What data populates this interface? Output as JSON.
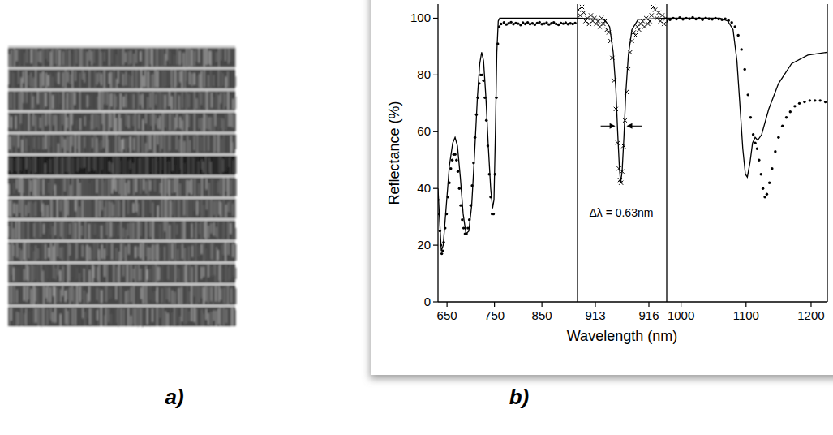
{
  "figure": {
    "panel_labels": [
      "a)",
      "b)"
    ]
  },
  "chart_data": [
    {
      "type": "line",
      "y_label": "Reflectance (%)",
      "xlim": [
        631,
        925
      ],
      "xticks": [
        650,
        750,
        850
      ],
      "ylim": [
        0,
        105
      ],
      "yticks": [
        0,
        20,
        40,
        60,
        80,
        100
      ],
      "series": [
        {
          "type": "line",
          "color": "#000000",
          "line_style": "solid",
          "x": [
            631,
            634,
            638,
            642,
            648,
            655,
            662,
            667,
            672,
            678,
            684,
            690,
            696,
            702,
            708,
            714,
            719,
            723,
            727,
            732,
            737,
            742,
            746,
            749,
            752,
            755,
            758,
            761,
            925
          ],
          "values": [
            40,
            30,
            18,
            20,
            33,
            48,
            56,
            58,
            55,
            44,
            31,
            24,
            25,
            34,
            52,
            72,
            84,
            88,
            85,
            72,
            55,
            40,
            33,
            36,
            60,
            88,
            99,
            100,
            100
          ]
        },
        {
          "type": "scatter",
          "color": "#000000",
          "marker": "dot",
          "x": [
            631,
            633,
            635,
            637,
            639,
            641,
            643,
            646,
            649,
            652,
            655,
            658,
            661,
            664,
            667,
            670,
            673,
            676,
            679,
            682,
            685,
            688,
            691,
            694,
            697,
            700,
            703,
            706,
            709,
            712,
            715,
            718,
            721,
            724,
            727,
            730,
            733,
            736,
            739,
            742,
            745,
            748,
            751,
            754,
            757,
            760,
            764,
            770,
            775,
            780,
            785,
            790,
            795,
            800,
            805,
            810,
            815,
            820,
            825,
            830,
            835,
            840,
            845,
            850,
            855,
            860,
            865,
            870,
            875,
            880,
            885,
            890,
            895,
            900,
            905,
            910,
            915,
            920
          ],
          "values": [
            36,
            31,
            25,
            20,
            17,
            18,
            21,
            26,
            31,
            37,
            42,
            47,
            50,
            52,
            52,
            50,
            46,
            40,
            34,
            29,
            26,
            24,
            24,
            26,
            29,
            34,
            41,
            49,
            58,
            66,
            72,
            77,
            80,
            80,
            78,
            72,
            64,
            55,
            45,
            37,
            31,
            31,
            45,
            72,
            91,
            97,
            98,
            98.5,
            97.8,
            98.2,
            98.6,
            97.9,
            98.3,
            98.1,
            97.6,
            98.4,
            98,
            98.5,
            97.9,
            98.2,
            97.7,
            98.3,
            98.6,
            97.9,
            98.1,
            98.4,
            97.8,
            98.2,
            98.5,
            98,
            97.7,
            98.3,
            98.1,
            98.4,
            97.9,
            98.2,
            98,
            98.3
          ]
        }
      ]
    },
    {
      "type": "line",
      "x_label": "Wavelength (nm)",
      "tick_labels": "x",
      "xlim": [
        912,
        917
      ],
      "xticks": [
        913,
        916
      ],
      "ylim": [
        0,
        105
      ],
      "series": [
        {
          "type": "line",
          "color": "#000000",
          "line_style": "solid",
          "x": [
            912,
            913.5,
            913.8,
            914.0,
            914.15,
            914.25,
            914.35,
            914.42,
            914.5,
            914.6,
            914.7,
            914.85,
            915.05,
            915.4,
            917
          ],
          "values": [
            100,
            99.6,
            97,
            88,
            75,
            60,
            47,
            42,
            46,
            58,
            73,
            87,
            96,
            99.6,
            100
          ]
        },
        {
          "type": "scatter",
          "color": "#000000",
          "marker": "cross",
          "x": [
            912.05,
            912.15,
            912.25,
            912.35,
            912.45,
            912.55,
            912.65,
            912.75,
            912.85,
            912.95,
            913.05,
            913.15,
            913.25,
            913.35,
            913.45,
            913.55,
            913.65,
            913.75,
            913.85,
            913.95,
            914.05,
            914.15,
            914.25,
            914.32,
            914.38,
            914.44,
            914.5,
            914.58,
            914.66,
            914.75,
            914.85,
            914.95,
            915.05,
            915.15,
            915.25,
            915.35,
            915.45,
            915.55,
            915.65,
            915.75,
            915.85,
            915.95,
            916.05,
            916.15,
            916.25,
            916.35,
            916.45,
            916.55,
            916.65,
            916.75,
            916.85,
            916.95
          ],
          "values": [
            103,
            101,
            104,
            102,
            99,
            100,
            98,
            101,
            99,
            100,
            98,
            99,
            97,
            100,
            98,
            99,
            96,
            95,
            92,
            86,
            78,
            68,
            56,
            47,
            43,
            42,
            46,
            55,
            64,
            74,
            82,
            88,
            92,
            95,
            94,
            97,
            96,
            98,
            99,
            97,
            100,
            98,
            99,
            101,
            104,
            103,
            100,
            102,
            99,
            101,
            98,
            100
          ]
        }
      ],
      "annotations": [
        {
          "text": "Δλ = 0.63nm",
          "x": 914.45,
          "y": 30,
          "arrows": {
            "y": 62,
            "from": [
              913.3,
              915.6
            ],
            "to": [
              914.12,
              914.75
            ]
          }
        }
      ]
    },
    {
      "type": "line",
      "tick_labels": "x",
      "xlim": [
        978,
        1225
      ],
      "xticks": [
        1000,
        1100,
        1200
      ],
      "ylim": [
        0,
        105
      ],
      "series": [
        {
          "type": "line",
          "color": "#000000",
          "line_style": "solid",
          "x": [
            978,
            1060,
            1072,
            1080,
            1086,
            1091,
            1095,
            1099,
            1102,
            1106,
            1110,
            1114,
            1118,
            1124,
            1135,
            1150,
            1170,
            1195,
            1225
          ],
          "values": [
            100,
            100,
            99,
            96,
            85,
            68,
            54,
            45,
            44,
            49,
            56,
            58,
            57,
            59,
            68,
            77,
            84,
            87,
            88
          ]
        },
        {
          "type": "scatter",
          "color": "#000000",
          "marker": "dot",
          "x": [
            978,
            983,
            988,
            993,
            998,
            1003,
            1008,
            1013,
            1018,
            1023,
            1028,
            1033,
            1038,
            1043,
            1048,
            1053,
            1058,
            1063,
            1068,
            1073,
            1078,
            1083,
            1088,
            1093,
            1098,
            1103,
            1107,
            1111,
            1114,
            1117,
            1120,
            1123,
            1126,
            1129,
            1132,
            1136,
            1140,
            1145,
            1150,
            1156,
            1162,
            1168,
            1175,
            1182,
            1190,
            1198,
            1206,
            1214,
            1222
          ],
          "values": [
            99,
            99.5,
            100,
            99.7,
            100.2,
            99.6,
            100,
            99.8,
            100.3,
            99.7,
            100,
            99.5,
            100.1,
            99.8,
            99.6,
            100,
            99.7,
            99.5,
            99.8,
            99.2,
            98.5,
            97,
            94,
            89,
            82,
            73,
            65,
            59,
            56,
            54,
            50,
            45,
            40,
            37,
            38,
            42,
            47,
            53,
            58,
            62,
            65,
            67,
            69,
            70,
            70.5,
            71,
            71,
            71,
            70.5
          ]
        }
      ]
    }
  ]
}
